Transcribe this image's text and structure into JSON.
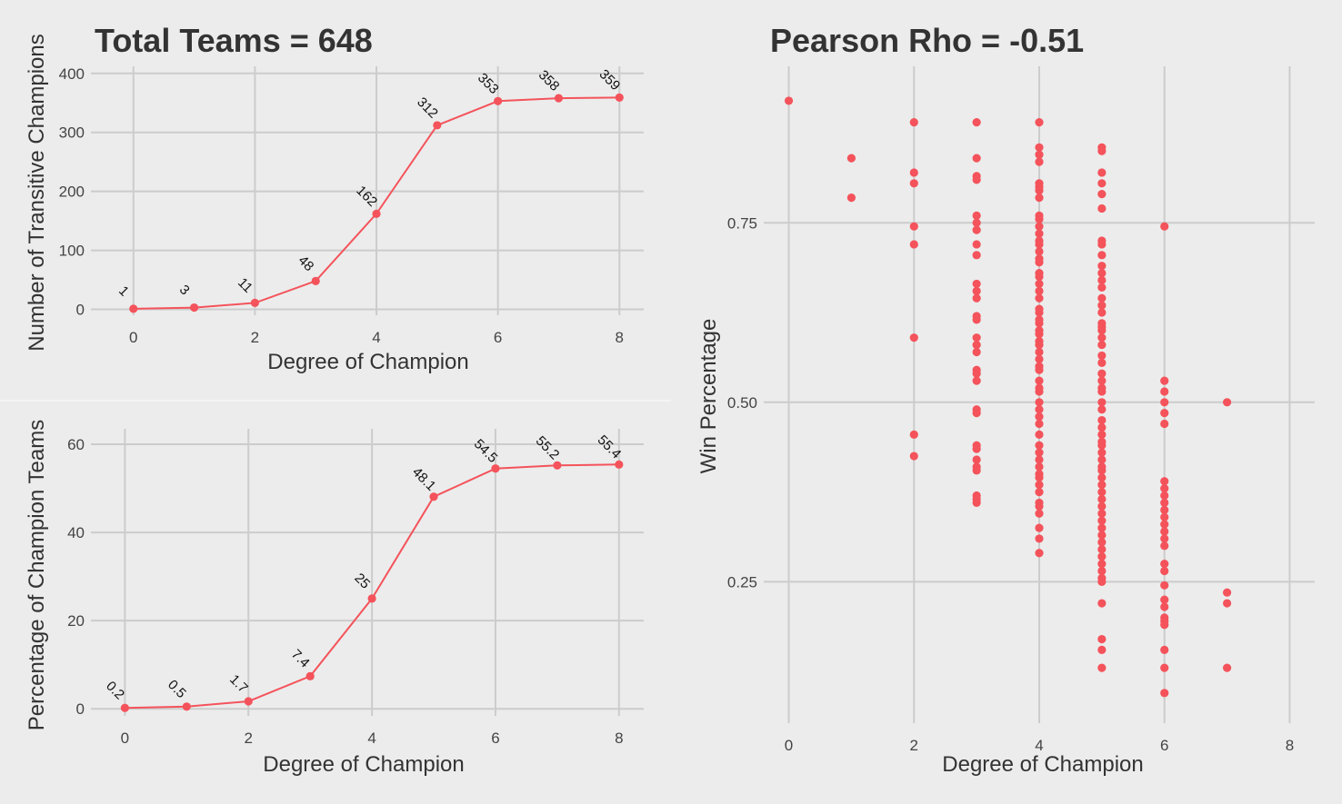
{
  "colors": {
    "background": "#ececec",
    "grid": "#cccccc",
    "series": "#f4535b",
    "text": "#333333"
  },
  "chart_data": [
    {
      "type": "line",
      "title": "Total Teams = 648",
      "xlabel": "Degree of Champion",
      "ylabel": "Number of Transitive Champions",
      "x": [
        0,
        1,
        2,
        3,
        4,
        5,
        6,
        7,
        8
      ],
      "values": [
        1,
        3,
        11,
        48,
        162,
        312,
        353,
        358,
        359
      ],
      "data_labels": [
        "1",
        "3",
        "11",
        "48",
        "162",
        "312",
        "353",
        "358",
        "359"
      ],
      "xlim": [
        -0.7,
        8.4
      ],
      "ylim": [
        -10,
        412
      ],
      "x_ticks": [
        0,
        2,
        4,
        6,
        8
      ],
      "x_tick_labels": [
        "0",
        "2",
        "4",
        "6",
        "8"
      ],
      "y_ticks": [
        0,
        100,
        200,
        300,
        400
      ],
      "y_tick_labels": [
        "0",
        "100",
        "200",
        "300",
        "400"
      ],
      "grid": true
    },
    {
      "type": "line",
      "title": "",
      "xlabel": "Degree of Champion",
      "ylabel": "Percentage of Champion Teams",
      "x": [
        0,
        1,
        2,
        3,
        4,
        5,
        6,
        7,
        8
      ],
      "values": [
        0.2,
        0.5,
        1.7,
        7.4,
        25,
        48.1,
        54.5,
        55.2,
        55.4
      ],
      "data_labels": [
        "0.2",
        "0.5",
        "1.7",
        "7.4",
        "25",
        "48.1",
        "54.5",
        "55.2",
        "55.4"
      ],
      "xlim": [
        -0.55,
        8.4
      ],
      "ylim": [
        -1.6,
        63.5
      ],
      "x_ticks": [
        0,
        2,
        4,
        6,
        8
      ],
      "x_tick_labels": [
        "0",
        "2",
        "4",
        "6",
        "8"
      ],
      "y_ticks": [
        0,
        20,
        40,
        60
      ],
      "y_tick_labels": [
        "0",
        "20",
        "40",
        "60"
      ],
      "grid": true
    },
    {
      "type": "scatter",
      "title": "Pearson Rho = -0.51",
      "xlabel": "Degree of Champion",
      "ylabel": "Win Percentage",
      "xlim": [
        -0.4,
        8.4
      ],
      "ylim": [
        0.053,
        0.968
      ],
      "x_ticks": [
        0,
        2,
        4,
        6,
        8
      ],
      "x_tick_labels": [
        "0",
        "2",
        "4",
        "6",
        "8"
      ],
      "y_ticks": [
        0.25,
        0.5,
        0.75
      ],
      "y_tick_labels": [
        "0.25",
        "0.50",
        "0.75"
      ],
      "grid": true,
      "points": [
        {
          "x": 0,
          "y": [
            0.92
          ]
        },
        {
          "x": 1,
          "y": [
            0.84,
            0.785
          ]
        },
        {
          "x": 2,
          "y": [
            0.89,
            0.82,
            0.805,
            0.745,
            0.72,
            0.59,
            0.455,
            0.425
          ]
        },
        {
          "x": 3,
          "y": [
            0.89,
            0.84,
            0.815,
            0.81,
            0.76,
            0.75,
            0.74,
            0.72,
            0.705,
            0.665,
            0.655,
            0.645,
            0.62,
            0.615,
            0.59,
            0.58,
            0.57,
            0.545,
            0.54,
            0.53,
            0.49,
            0.485,
            0.44,
            0.435,
            0.42,
            0.41,
            0.405,
            0.37,
            0.365,
            0.36
          ]
        },
        {
          "x": 4,
          "y": [
            0.89,
            0.855,
            0.845,
            0.835,
            0.805,
            0.8,
            0.795,
            0.785,
            0.76,
            0.755,
            0.745,
            0.735,
            0.725,
            0.72,
            0.71,
            0.7,
            0.695,
            0.68,
            0.675,
            0.665,
            0.655,
            0.645,
            0.63,
            0.625,
            0.615,
            0.61,
            0.6,
            0.595,
            0.585,
            0.58,
            0.57,
            0.56,
            0.55,
            0.545,
            0.53,
            0.52,
            0.515,
            0.5,
            0.49,
            0.48,
            0.47,
            0.455,
            0.44,
            0.43,
            0.42,
            0.41,
            0.4,
            0.395,
            0.385,
            0.375,
            0.36,
            0.355,
            0.345,
            0.325,
            0.31,
            0.29
          ]
        },
        {
          "x": 5,
          "y": [
            0.855,
            0.85,
            0.82,
            0.805,
            0.79,
            0.77,
            0.725,
            0.72,
            0.705,
            0.69,
            0.68,
            0.67,
            0.66,
            0.645,
            0.635,
            0.625,
            0.61,
            0.605,
            0.6,
            0.59,
            0.58,
            0.565,
            0.555,
            0.54,
            0.53,
            0.52,
            0.515,
            0.5,
            0.49,
            0.475,
            0.465,
            0.455,
            0.445,
            0.44,
            0.43,
            0.42,
            0.41,
            0.405,
            0.395,
            0.385,
            0.375,
            0.365,
            0.355,
            0.345,
            0.335,
            0.325,
            0.315,
            0.305,
            0.295,
            0.285,
            0.275,
            0.265,
            0.255,
            0.25,
            0.22,
            0.17,
            0.155,
            0.13
          ]
        },
        {
          "x": 6,
          "y": [
            0.745,
            0.53,
            0.515,
            0.5,
            0.485,
            0.47,
            0.39,
            0.38,
            0.37,
            0.36,
            0.35,
            0.34,
            0.33,
            0.32,
            0.31,
            0.3,
            0.275,
            0.265,
            0.245,
            0.225,
            0.215,
            0.2,
            0.195,
            0.19,
            0.155,
            0.13,
            0.095
          ]
        },
        {
          "x": 7,
          "y": [
            0.5,
            0.235,
            0.22,
            0.13
          ]
        }
      ]
    }
  ]
}
